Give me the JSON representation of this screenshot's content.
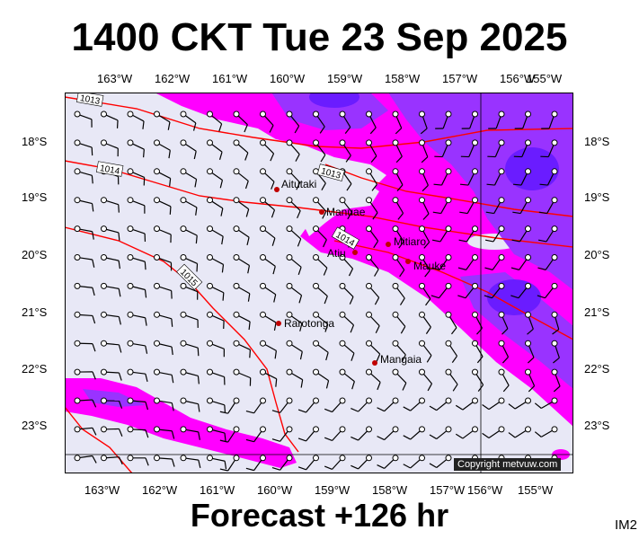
{
  "title": "1400 CKT Tue 23 Sep 2025",
  "forecast": "Forecast +126 hr",
  "product_code": "IM2",
  "copyright": "Copyright metvuw.com",
  "colors": {
    "background": "#e8e8f6",
    "magenta": "#ff00ff",
    "purple": "#9933ff",
    "deep": "#6a1cff",
    "isobar": "#ff0000"
  },
  "longitude_labels": [
    "163°W",
    "162°W",
    "161°W",
    "160°W",
    "159°W",
    "158°W",
    "157°W",
    "156°W",
    "155°W"
  ],
  "latitude_labels": [
    "18°S",
    "19°S",
    "20°S",
    "21°S",
    "22°S",
    "23°S"
  ],
  "isobar_labels": [
    "1013",
    "1014",
    "1013",
    "1014",
    "1015"
  ],
  "places": [
    {
      "name": "Aitutaki"
    },
    {
      "name": "Manuae"
    },
    {
      "name": "Mitiaro"
    },
    {
      "name": "Atiu"
    },
    {
      "name": "Mauke"
    },
    {
      "name": "Rarotonga"
    },
    {
      "name": "Mangaia"
    }
  ]
}
